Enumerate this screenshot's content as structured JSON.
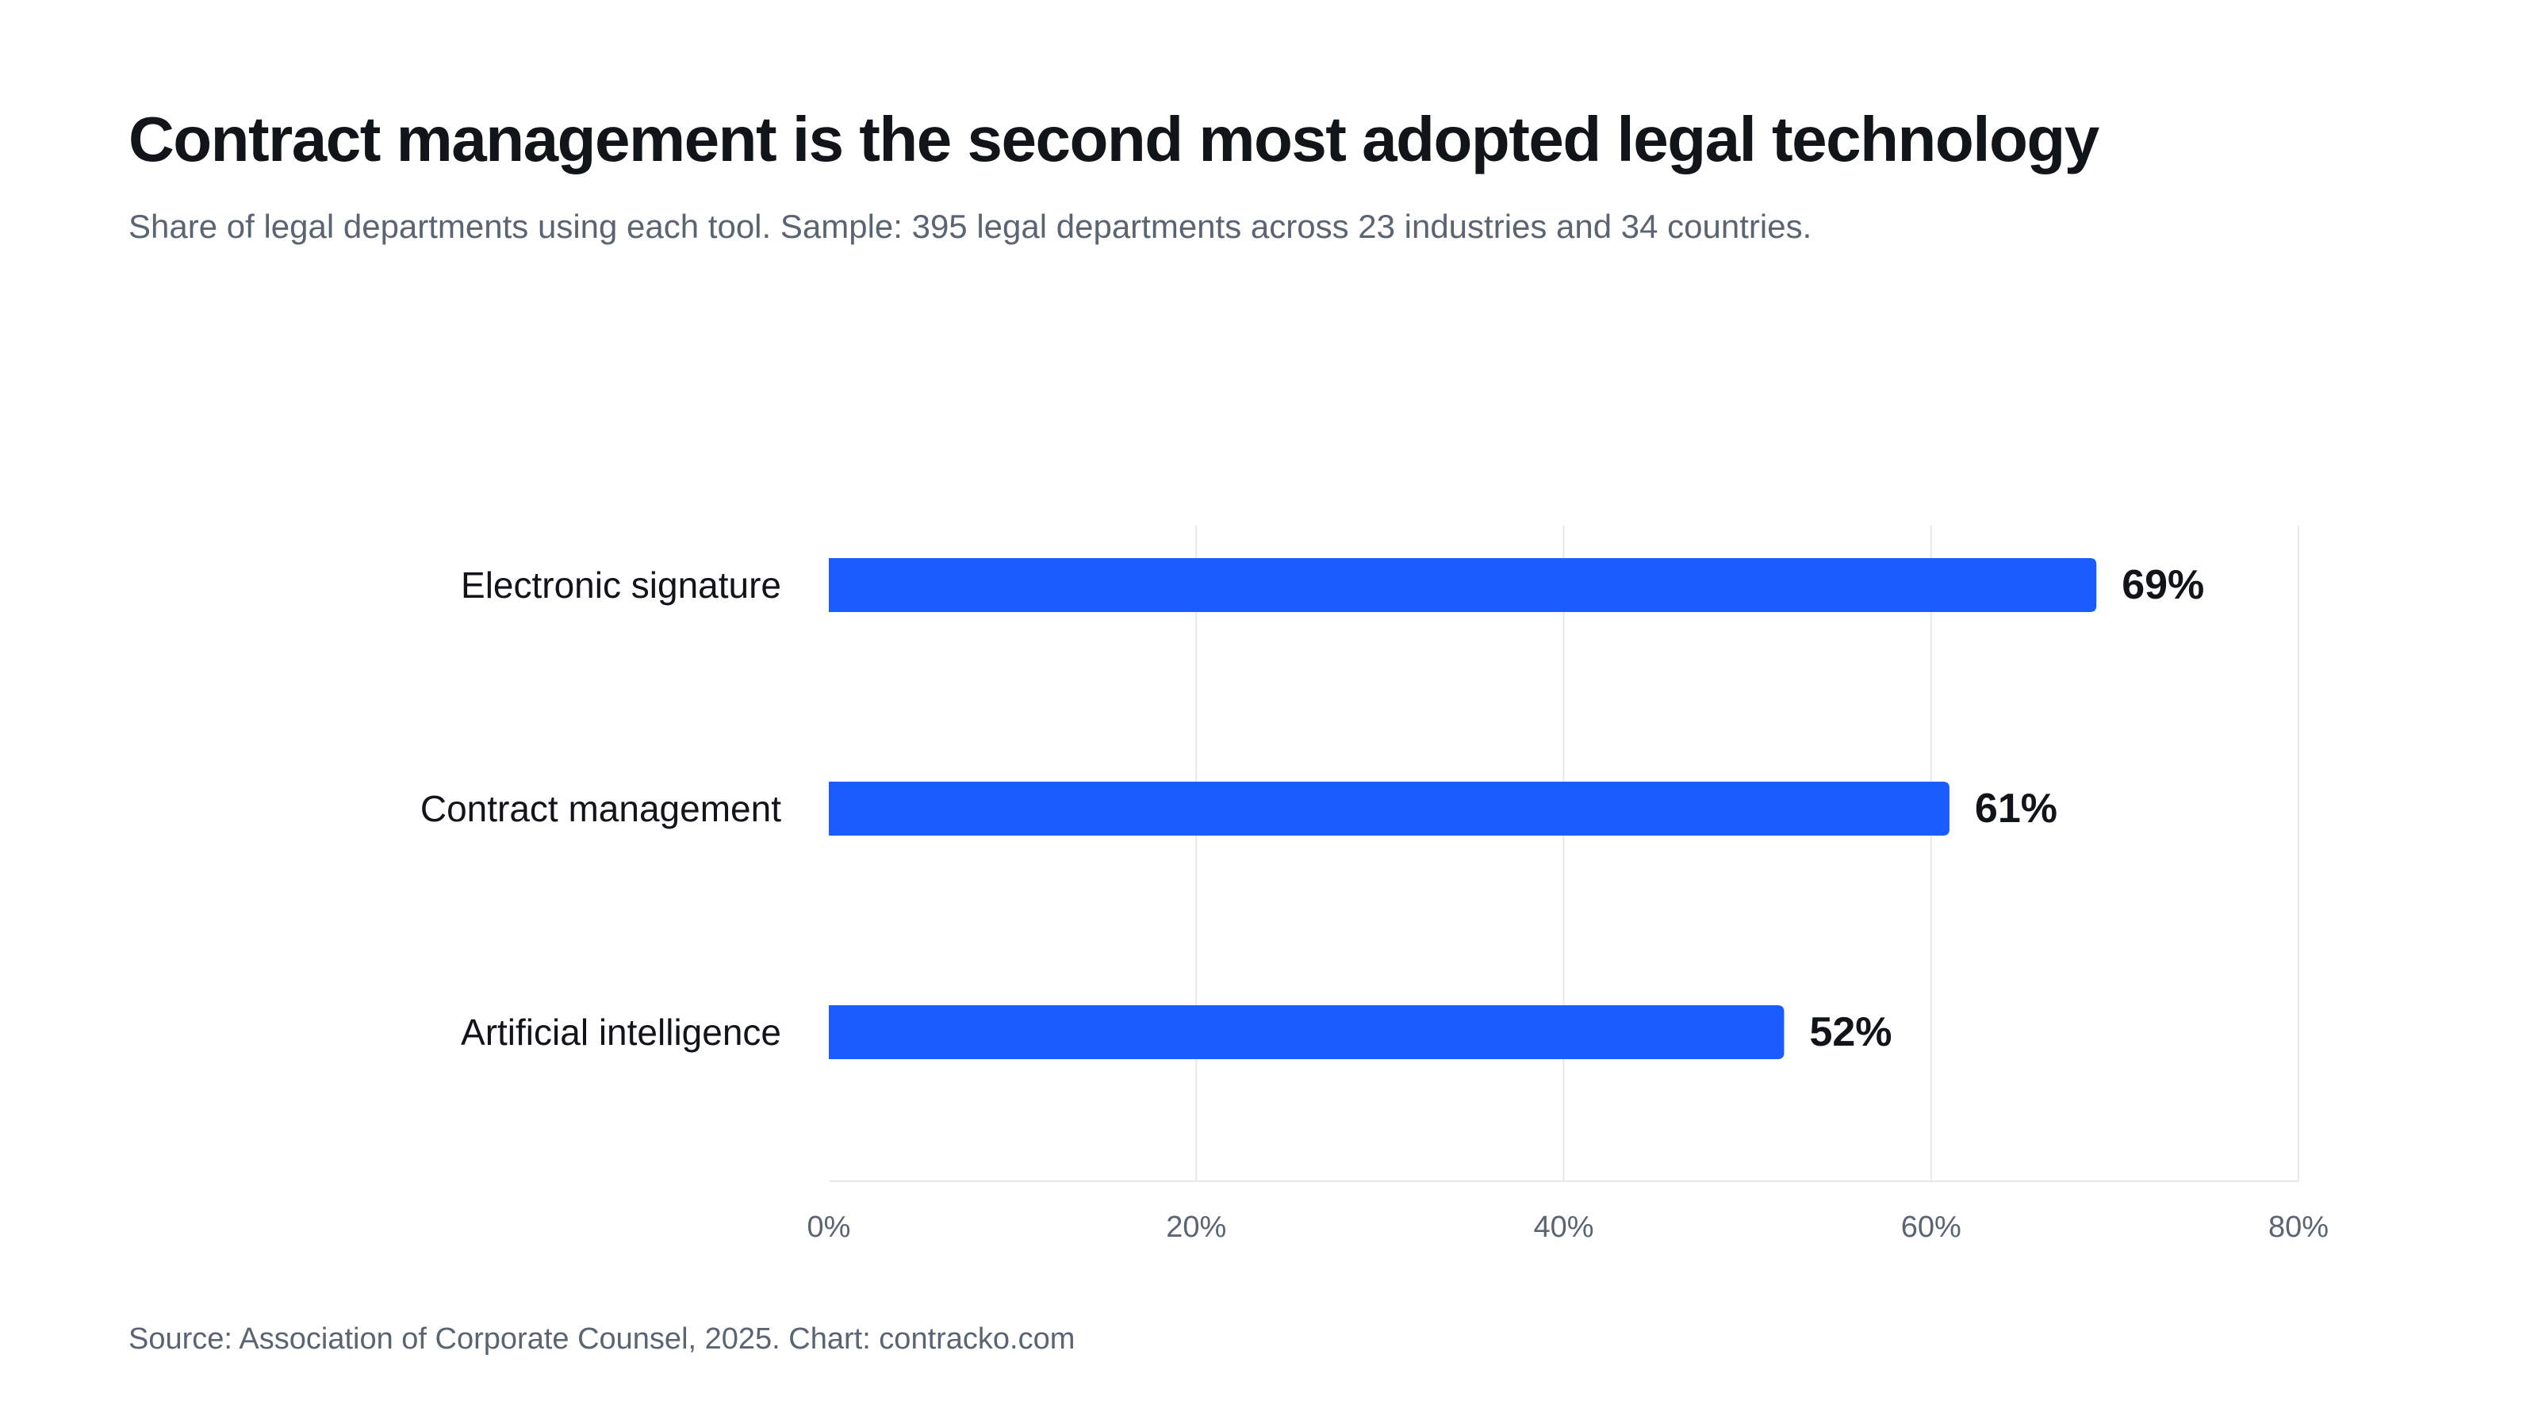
{
  "header": {
    "title": "Contract management is the second most adopted legal technology",
    "subtitle": "Share of legal departments using each tool. Sample: 395 legal departments across 23 industries and 34 countries."
  },
  "footer": {
    "source": "Source: Association of Corporate Counsel, 2025. Chart: contracko.com"
  },
  "colors": {
    "bar": "#1a5cff",
    "grid": "#e6e8ec",
    "text": "#111418",
    "muted": "#5b6472"
  },
  "chart_data": {
    "type": "bar",
    "orientation": "horizontal",
    "title": "Contract management is the second most adopted legal technology",
    "subtitle": "Share of legal departments using each tool. Sample: 395 legal departments across 23 industries and 34 countries.",
    "categories": [
      "Electronic signature",
      "Contract management",
      "Artificial intelligence"
    ],
    "values": [
      69,
      61,
      52
    ],
    "value_labels": [
      "69%",
      "61%",
      "52%"
    ],
    "xlim": [
      0,
      80
    ],
    "xticks": [
      0,
      20,
      40,
      60,
      80
    ],
    "xtick_labels": [
      "0%",
      "20%",
      "40%",
      "60%",
      "80%"
    ],
    "xlabel": "",
    "ylabel": "",
    "grid": "vertical",
    "legend": "none"
  }
}
